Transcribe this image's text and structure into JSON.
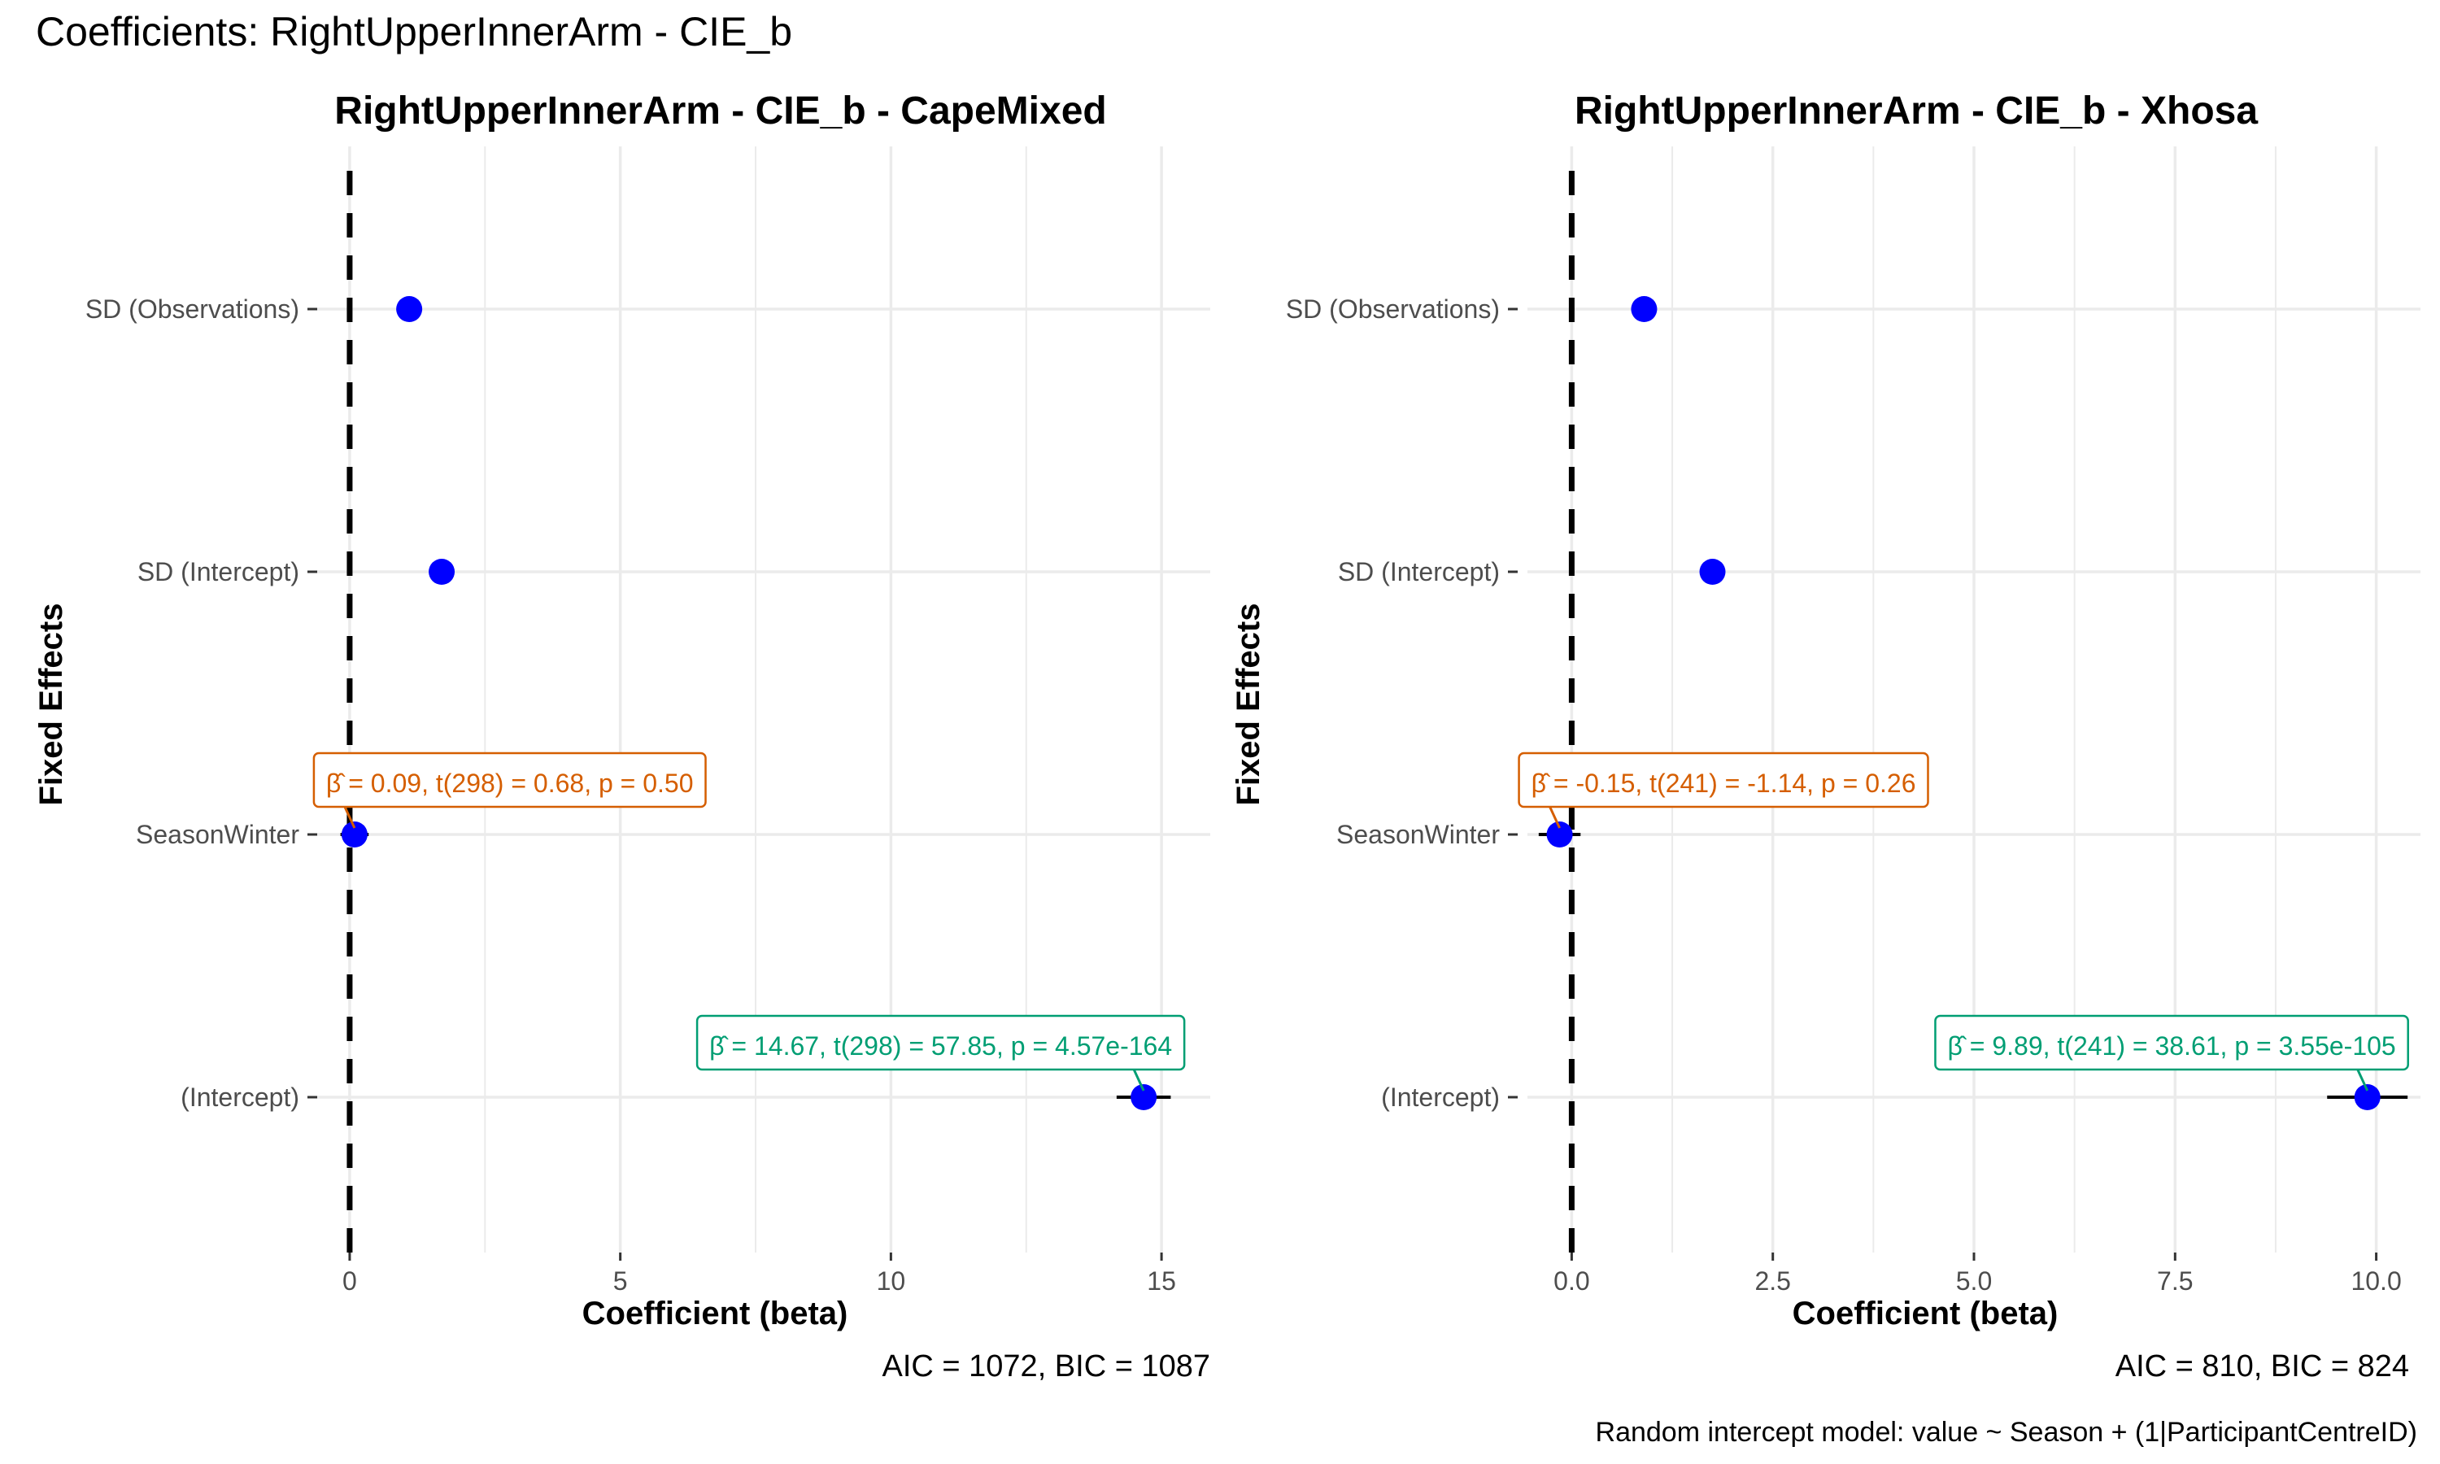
{
  "figure": {
    "title": "Coefficients: RightUpperInnerArm - CIE_b",
    "caption": "Random intercept model: value ~ Season + (1|ParticipantCentreID)"
  },
  "colors": {
    "point": "#0000ff",
    "grid": "#ebebeb",
    "zero_line": "#000000",
    "season_label": "#d55e00",
    "intercept_label": "#009e73"
  },
  "chart_data": [
    {
      "type": "scatter",
      "title": "RightUpperInnerArm - CIE_b - CapeMixed",
      "xlabel": "Coefficient (beta)",
      "ylabel": "Fixed Effects",
      "xlim": [
        -0.6,
        15.9
      ],
      "xticks": [
        0,
        5,
        10,
        15
      ],
      "xtick_labels": [
        "0",
        "5",
        "10",
        "15"
      ],
      "grid": true,
      "reference_line": 0,
      "categories": [
        "SD (Observations)",
        "SD (Intercept)",
        "SeasonWinter",
        "(Intercept)"
      ],
      "estimates": [
        1.1,
        1.7,
        0.09,
        14.67
      ],
      "ci_low": [
        null,
        null,
        -0.17,
        14.17
      ],
      "ci_high": [
        null,
        null,
        0.35,
        15.17
      ],
      "labels": [
        {
          "term": "SeasonWinter",
          "text": "β̂ = 0.09, t(298) = 0.68, p = 0.50",
          "color_key": "season_label"
        },
        {
          "term": "(Intercept)",
          "text": "β̂ = 14.67, t(298) = 57.85, p = 4.57e-164",
          "color_key": "intercept_label"
        }
      ],
      "fit_stats": "AIC = 1072, BIC = 1087"
    },
    {
      "type": "scatter",
      "title": "RightUpperInnerArm - CIE_b - Xhosa",
      "xlabel": "Coefficient (beta)",
      "ylabel": "Fixed Effects",
      "xlim": [
        -0.55,
        10.55
      ],
      "xticks": [
        0,
        2.5,
        5,
        7.5,
        10
      ],
      "xtick_labels": [
        "0.0",
        "2.5",
        "5.0",
        "7.5",
        "10.0"
      ],
      "grid": true,
      "reference_line": 0,
      "categories": [
        "SD (Observations)",
        "SD (Intercept)",
        "SeasonWinter",
        "(Intercept)"
      ],
      "estimates": [
        0.9,
        1.75,
        -0.15,
        9.89
      ],
      "ci_low": [
        null,
        null,
        -0.41,
        9.39
      ],
      "ci_high": [
        null,
        null,
        0.11,
        10.39
      ],
      "labels": [
        {
          "term": "SeasonWinter",
          "text": "β̂ = -0.15, t(241) = -1.14, p = 0.26",
          "color_key": "season_label"
        },
        {
          "term": "(Intercept)",
          "text": "β̂ = 9.89, t(241) = 38.61, p = 3.55e-105",
          "color_key": "intercept_label"
        }
      ],
      "fit_stats": "AIC = 810, BIC = 824"
    }
  ]
}
